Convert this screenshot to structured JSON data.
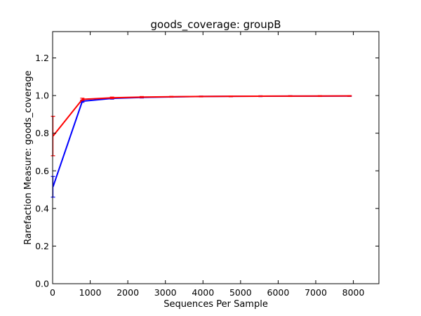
{
  "chart_data": {
    "type": "line",
    "title": "goods_coverage: groupB",
    "xlabel": "Sequences Per Sample",
    "ylabel": "Rarefaction Measure: goods_coverage",
    "xlim": [
      0,
      8680
    ],
    "ylim": [
      0.0,
      1.34
    ],
    "xticks": [
      0,
      1000,
      2000,
      3000,
      4000,
      5000,
      6000,
      7000,
      8000
    ],
    "xtick_labels": [
      "0",
      "1000",
      "2000",
      "3000",
      "4000",
      "5000",
      "6000",
      "7000",
      "8000"
    ],
    "yticks": [
      0.0,
      0.2,
      0.4,
      0.6,
      0.8,
      1.0,
      1.2
    ],
    "ytick_labels": [
      "0.0",
      "0.2",
      "0.4",
      "0.6",
      "0.8",
      "1.0",
      "1.2"
    ],
    "grid": false,
    "legend": "none",
    "series": [
      {
        "color": "#0000ff",
        "x": [
          10,
          790,
          1580,
          2370,
          3160,
          3950,
          4740,
          5530,
          6320,
          7110,
          7900
        ],
        "y": [
          0.515,
          0.97,
          0.985,
          0.99,
          0.993,
          0.995,
          0.996,
          0.9965,
          0.997,
          0.997,
          0.9975
        ],
        "error": [
          0.055,
          0.006,
          0.004,
          0.003,
          0.002,
          0.002,
          0.002,
          0.002,
          0.002,
          0.002,
          0.002
        ]
      },
      {
        "color": "#ff0000",
        "x": [
          10,
          790,
          1580,
          2370,
          3160,
          3950,
          4740,
          5530,
          6320,
          7110,
          7900
        ],
        "y": [
          0.785,
          0.98,
          0.988,
          0.992,
          0.994,
          0.995,
          0.996,
          0.9968,
          0.9972,
          0.9975,
          0.998
        ],
        "error": [
          0.105,
          0.006,
          0.004,
          0.003,
          0.002,
          0.002,
          0.002,
          0.002,
          0.002,
          0.002,
          0.002
        ]
      }
    ]
  }
}
